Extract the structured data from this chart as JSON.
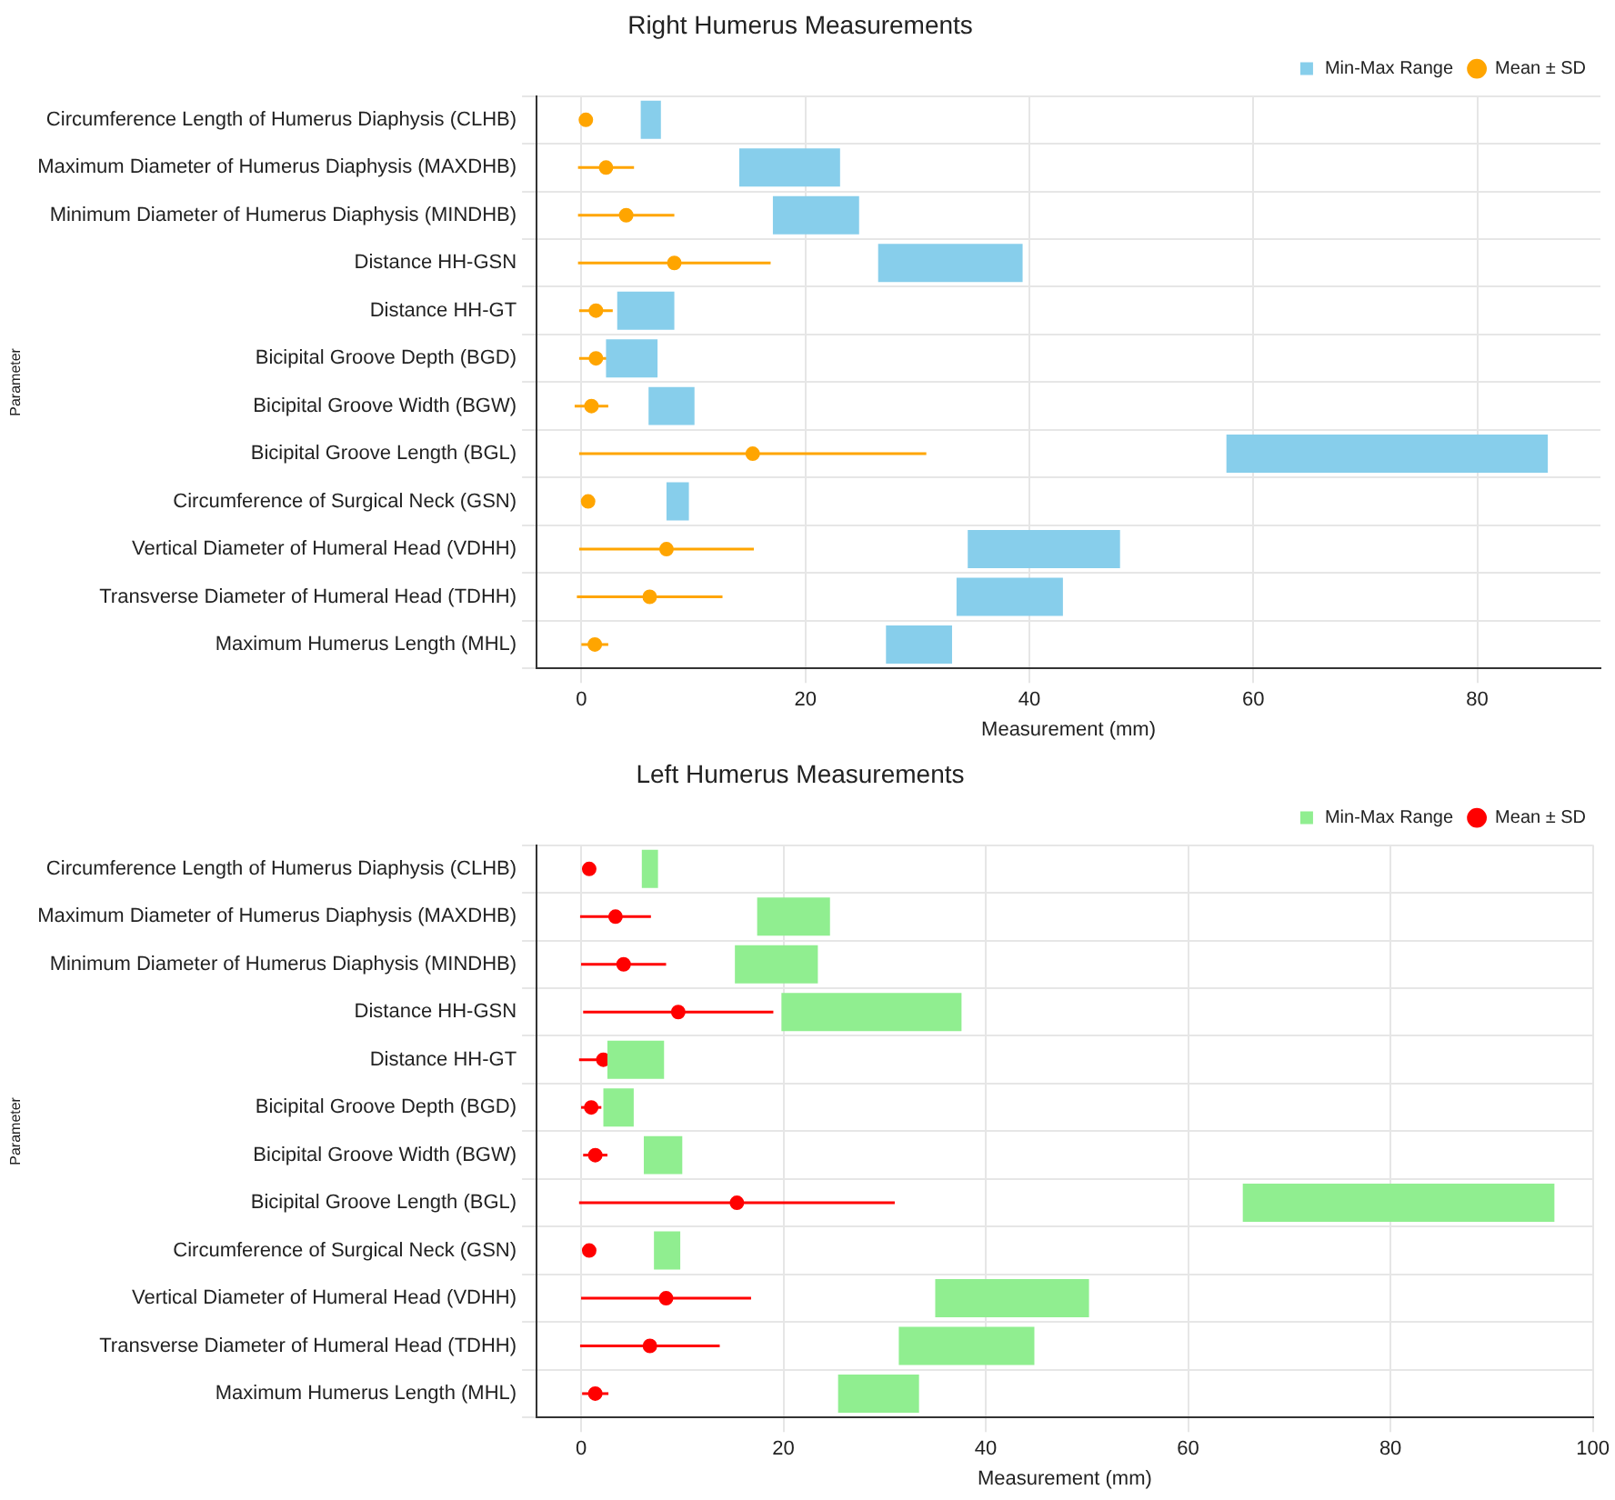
{
  "chart_data": [
    {
      "type": "bar",
      "orientation": "horizontal",
      "title": "Right Humerus Measurements",
      "xlabel": "Measurement (mm)",
      "ylabel": "Parameter",
      "categories": [
        "Circumference Length of Humerus Diaphysis (CLHB)",
        "Maximum Diameter of Humerus Diaphysis (MAXDHB)",
        "Minimum Diameter of Humerus Diaphysis (MINDHB)",
        "Distance HH-GSN",
        "Distance HH-GT",
        "Bicipital Groove Depth (BGD)",
        "Bicipital Groove Width (BGW)",
        "Bicipital Groove Length (BGL)",
        "Circumference of Surgical Neck (GSN)",
        "Vertical Diameter of Humeral Head (VDHH)",
        "Transverse Diameter of Humeral Head (TDHH)",
        "Maximum Humerus Length (MHL)"
      ],
      "series": [
        {
          "name": "Min-Max Range",
          "type": "bar",
          "color": "#87ceeb",
          "base": [
            5.3,
            14.1,
            17.1,
            26.5,
            3.2,
            2.2,
            6.0,
            57.6,
            7.6,
            34.5,
            33.5,
            27.2
          ],
          "values": [
            1.8,
            9.0,
            7.7,
            12.9,
            5.1,
            4.6,
            4.1,
            28.7,
            2.0,
            13.6,
            9.5,
            5.9
          ]
        },
        {
          "name": "Mean ± SD",
          "type": "scatter",
          "color": "#ffa500",
          "values": [
            0.4,
            2.2,
            4.0,
            8.3,
            1.3,
            1.3,
            0.9,
            15.3,
            0.6,
            7.6,
            6.1,
            1.2
          ],
          "errors": [
            0.5,
            2.5,
            4.3,
            8.6,
            1.5,
            1.5,
            1.5,
            15.5,
            0.5,
            7.8,
            6.5,
            1.2
          ]
        }
      ],
      "xlim": [
        -4,
        91
      ],
      "xticks": [
        0,
        20,
        40,
        60,
        80
      ],
      "grid": true,
      "legend": "top right",
      "marker": "circle"
    },
    {
      "type": "bar",
      "orientation": "horizontal",
      "title": "Left Humerus Measurements",
      "xlabel": "Measurement (mm)",
      "ylabel": "Parameter",
      "categories": [
        "Circumference Length of Humerus Diaphysis (CLHB)",
        "Maximum Diameter of Humerus Diaphysis (MAXDHB)",
        "Minimum Diameter of Humerus Diaphysis (MINDHB)",
        "Distance HH-GSN",
        "Distance HH-GT",
        "Bicipital Groove Depth (BGD)",
        "Bicipital Groove Width (BGW)",
        "Bicipital Groove Length (BGL)",
        "Circumference of Surgical Neck (GSN)",
        "Vertical Diameter of Humeral Head (VDHH)",
        "Transverse Diameter of Humeral Head (TDHH)",
        "Maximum Humerus Length (MHL)"
      ],
      "series": [
        {
          "name": "Min-Max Range",
          "type": "bar",
          "color": "#90ee90",
          "base": [
            6.0,
            17.4,
            15.2,
            19.8,
            2.6,
            2.2,
            6.2,
            65.4,
            7.2,
            35.0,
            31.4,
            25.4
          ],
          "values": [
            1.6,
            7.2,
            8.2,
            17.8,
            5.6,
            3.0,
            3.8,
            30.8,
            2.6,
            15.2,
            13.4,
            8.0
          ]
        },
        {
          "name": "Mean ± SD",
          "type": "scatter",
          "color": "#ff0000",
          "values": [
            0.8,
            3.4,
            4.2,
            9.6,
            2.2,
            1.0,
            1.4,
            15.4,
            0.8,
            8.4,
            6.8,
            1.4
          ],
          "errors": [
            0.6,
            3.5,
            4.2,
            9.4,
            2.4,
            1.0,
            1.2,
            15.6,
            0.5,
            8.4,
            6.9,
            1.3
          ]
        }
      ],
      "xlim": [
        -4.4,
        100
      ],
      "xticks": [
        0,
        20,
        40,
        60,
        80,
        100
      ],
      "grid": true,
      "legend": "top right",
      "marker": "circle"
    }
  ]
}
